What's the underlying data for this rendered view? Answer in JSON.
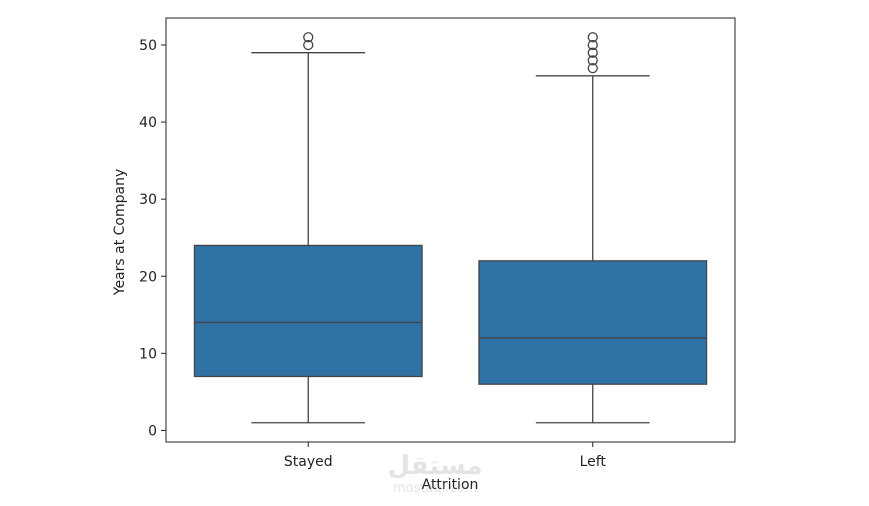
{
  "chart_data": {
    "type": "box",
    "title": "",
    "xlabel": "Attrition",
    "ylabel": "Years at Company",
    "categories": [
      "Stayed",
      "Left"
    ],
    "ylim": [
      -1.5,
      53.5
    ],
    "yticks": [
      0,
      10,
      20,
      30,
      40,
      50
    ],
    "grid": false,
    "box_color": "#2f72a6",
    "line_color": "#444444",
    "boxes": [
      {
        "category": "Stayed",
        "whisker_low": 1,
        "q1": 7,
        "median": 14,
        "q3": 24,
        "whisker_high": 49,
        "outliers": [
          50,
          51
        ]
      },
      {
        "category": "Left",
        "whisker_low": 1,
        "q1": 6,
        "median": 12,
        "q3": 22,
        "whisker_high": 46,
        "outliers": [
          47,
          48,
          49,
          50,
          51
        ]
      }
    ]
  },
  "watermark": {
    "text": "مستقل",
    "sub": "mostaql.com"
  }
}
